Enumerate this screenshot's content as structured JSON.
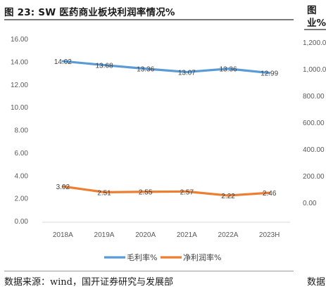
{
  "header": {
    "title": "图 23:  SW 医药商业板块利润率情况%",
    "right_title_line1": "图",
    "right_title_line2": "业%"
  },
  "footer": {
    "source": "数据来源：wind，国开证券研究与发展部",
    "right_source": "数据"
  },
  "chart_data": [
    {
      "type": "line",
      "title": "",
      "categories": [
        "2018A",
        "2019A",
        "2020A",
        "2021A",
        "2022A",
        "2023H"
      ],
      "series": [
        {
          "name": "毛利率%",
          "color": "#5b9bd5",
          "values": [
            14.02,
            13.68,
            13.36,
            13.07,
            13.36,
            12.99
          ],
          "labels": [
            "14.02",
            "13.68",
            "13.36",
            "13.07",
            "13.36",
            "12.99"
          ]
        },
        {
          "name": "净利润率%",
          "color": "#ed7d31",
          "values": [
            3.02,
            2.51,
            2.55,
            2.57,
            2.22,
            2.46
          ],
          "labels": [
            "3.02",
            "2.51",
            "2.55",
            "2.57",
            "2.22",
            "2.46"
          ]
        }
      ],
      "ylim": [
        0,
        16
      ],
      "yticks": [
        "0.00",
        "2.00",
        "4.00",
        "6.00",
        "8.00",
        "10.00",
        "12.00",
        "14.00",
        "16.00"
      ],
      "xlabel": "",
      "ylabel": "",
      "grid": false,
      "legend": "bottom"
    },
    {
      "type": "line",
      "title": "",
      "ylim": [
        0,
        1200
      ],
      "yticks": [
        "0.00",
        "200.00",
        "400.00",
        "600.00",
        "800.00",
        "1,000.00",
        "1,200.00"
      ]
    }
  ]
}
